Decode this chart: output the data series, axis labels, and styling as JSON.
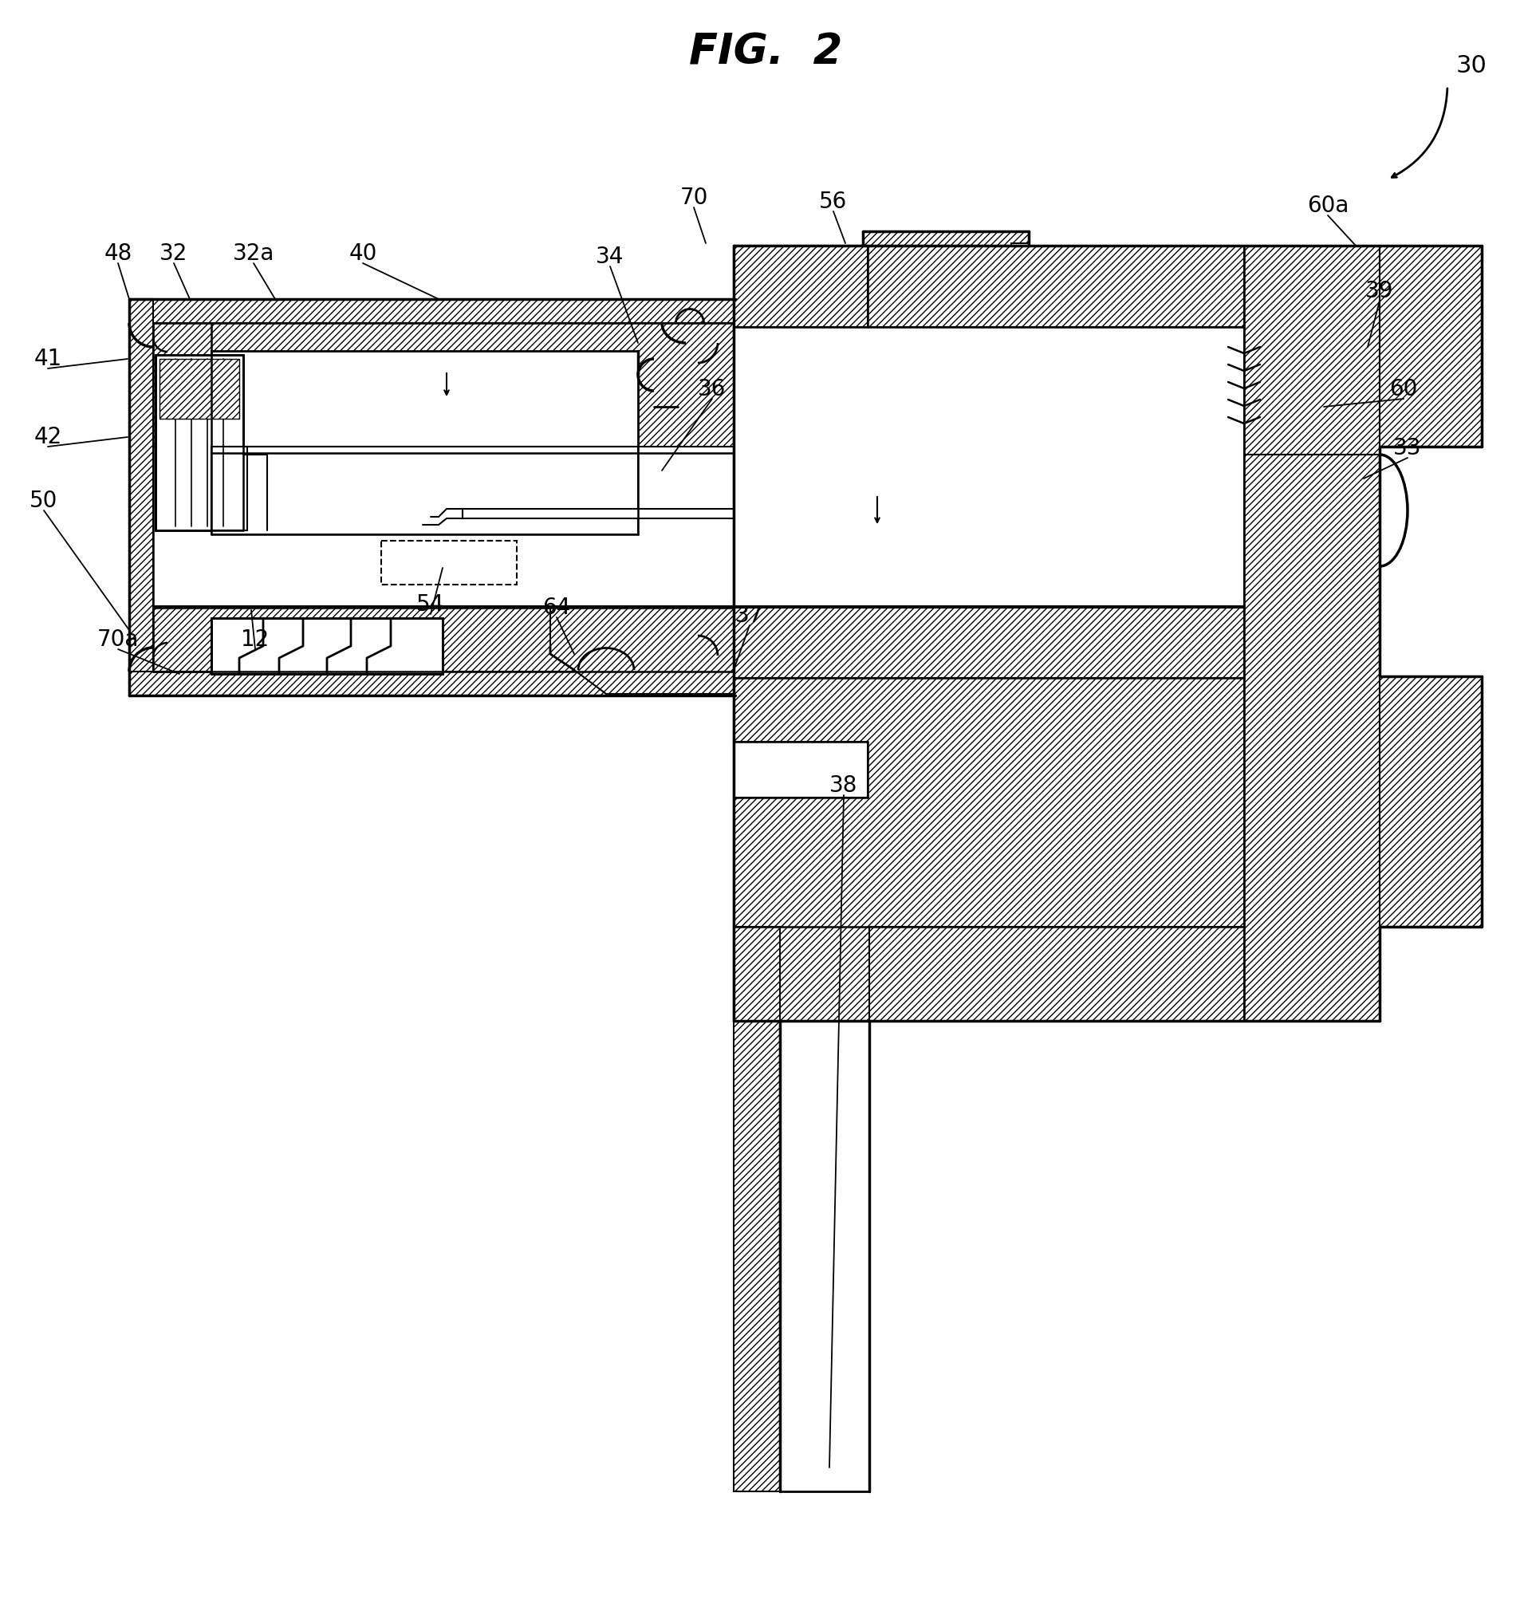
{
  "title": "FIG.  2",
  "title_fontsize": 38,
  "background_color": "#ffffff",
  "line_color": "#000000",
  "label_fontsize": 20,
  "fig_label": "30",
  "labels_with_leaders": [
    [
      "70",
      870,
      248,
      885,
      305
    ],
    [
      "56",
      1045,
      253,
      1060,
      305
    ],
    [
      "60a",
      1665,
      258,
      1700,
      308
    ],
    [
      "48",
      148,
      318,
      162,
      375
    ],
    [
      "32",
      218,
      318,
      238,
      375
    ],
    [
      "32a",
      318,
      318,
      345,
      375
    ],
    [
      "40",
      455,
      318,
      550,
      375
    ],
    [
      "34",
      765,
      322,
      800,
      430
    ],
    [
      "39",
      1730,
      365,
      1715,
      435
    ],
    [
      "41",
      60,
      450,
      160,
      450
    ],
    [
      "36",
      893,
      488,
      830,
      590
    ],
    [
      "60",
      1760,
      488,
      1660,
      510
    ],
    [
      "42",
      60,
      548,
      160,
      548
    ],
    [
      "33",
      1765,
      562,
      1710,
      600
    ],
    [
      "50",
      55,
      628,
      162,
      790
    ],
    [
      "54",
      540,
      758,
      555,
      712
    ],
    [
      "64",
      698,
      762,
      720,
      820
    ],
    [
      "37",
      940,
      772,
      920,
      840
    ],
    [
      "70a",
      148,
      802,
      225,
      845
    ],
    [
      "12",
      320,
      802,
      315,
      765
    ],
    [
      "38",
      1058,
      985,
      1040,
      1840
    ]
  ]
}
